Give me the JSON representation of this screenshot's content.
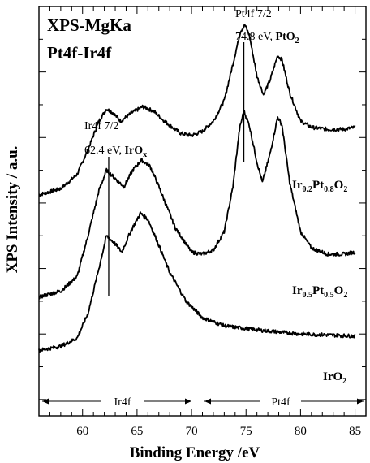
{
  "chart_data": {
    "type": "line",
    "title_lines": [
      "XPS-MgKa",
      "Pt4f-Ir4f"
    ],
    "xlabel": "Binding Energy /eV",
    "ylabel": "XPS Intensity / a.u.",
    "xlim": [
      56,
      86
    ],
    "ylim": [
      0,
      100
    ],
    "x_ticks": [
      60,
      65,
      70,
      75,
      80,
      85
    ],
    "y_ticks_visible_labels": false,
    "series": [
      {
        "name_parts": [
          [
            "Ir",
            ""
          ],
          [
            "0.2",
            "sub"
          ],
          [
            "Pt",
            ""
          ],
          [
            "0.8",
            "sub"
          ],
          [
            "O",
            ""
          ],
          [
            "2",
            "sub"
          ]
        ],
        "points": [
          [
            56,
            54
          ],
          [
            58,
            55.5
          ],
          [
            59.5,
            59
          ],
          [
            60.5,
            65
          ],
          [
            61.5,
            72
          ],
          [
            62.2,
            75
          ],
          [
            62.8,
            74
          ],
          [
            63.5,
            72
          ],
          [
            64.5,
            74
          ],
          [
            65.5,
            75.5
          ],
          [
            66.5,
            74.5
          ],
          [
            67.5,
            72
          ],
          [
            69,
            69
          ],
          [
            70,
            68.5
          ],
          [
            71,
            69.5
          ],
          [
            72,
            72
          ],
          [
            73,
            77
          ],
          [
            73.8,
            86
          ],
          [
            74.5,
            94
          ],
          [
            74.9,
            95.5
          ],
          [
            75.3,
            93
          ],
          [
            76,
            83
          ],
          [
            76.6,
            78.5
          ],
          [
            77.2,
            82
          ],
          [
            77.9,
            88
          ],
          [
            78.3,
            87
          ],
          [
            79,
            79
          ],
          [
            80,
            72
          ],
          [
            81,
            70.5
          ],
          [
            82.5,
            70
          ],
          [
            84,
            70
          ],
          [
            85,
            70.5
          ]
        ]
      },
      {
        "name_parts": [
          [
            "Ir",
            ""
          ],
          [
            "0.5",
            "sub"
          ],
          [
            "Pt",
            ""
          ],
          [
            "0.5",
            "sub"
          ],
          [
            "O",
            ""
          ],
          [
            "2",
            "sub"
          ]
        ],
        "points": [
          [
            56,
            29
          ],
          [
            58,
            30.5
          ],
          [
            59.5,
            34
          ],
          [
            60.5,
            44
          ],
          [
            61.5,
            55
          ],
          [
            62.2,
            60
          ],
          [
            63,
            58
          ],
          [
            63.8,
            56
          ],
          [
            64.6,
            60
          ],
          [
            65.4,
            62.5
          ],
          [
            66.2,
            61
          ],
          [
            67,
            56
          ],
          [
            68.5,
            46
          ],
          [
            70,
            40
          ],
          [
            71,
            39.5
          ],
          [
            72,
            40.5
          ],
          [
            73,
            45
          ],
          [
            73.8,
            56
          ],
          [
            74.4,
            70
          ],
          [
            74.8,
            74.5
          ],
          [
            75.3,
            71
          ],
          [
            76,
            62
          ],
          [
            76.5,
            57
          ],
          [
            77.2,
            64
          ],
          [
            77.9,
            73
          ],
          [
            78.3,
            71
          ],
          [
            79,
            57
          ],
          [
            80,
            45
          ],
          [
            81,
            41
          ],
          [
            82.5,
            39.5
          ],
          [
            84,
            39.5
          ],
          [
            85,
            40
          ]
        ]
      },
      {
        "name_parts": [
          [
            "IrO",
            ""
          ],
          [
            "2",
            "sub"
          ]
        ],
        "points": [
          [
            56,
            16
          ],
          [
            58,
            17
          ],
          [
            59.5,
            19
          ],
          [
            60.5,
            25
          ],
          [
            61.5,
            36
          ],
          [
            62.2,
            44
          ],
          [
            63,
            42
          ],
          [
            63.6,
            40
          ],
          [
            64.4,
            45
          ],
          [
            65.3,
            49.5
          ],
          [
            66,
            48
          ],
          [
            66.8,
            43
          ],
          [
            68,
            35
          ],
          [
            69.5,
            28
          ],
          [
            71,
            24
          ],
          [
            73,
            22
          ],
          [
            76,
            21
          ],
          [
            80,
            20
          ],
          [
            85,
            19.5
          ]
        ]
      }
    ],
    "annotations": {
      "ir_peak": {
        "name": "Ir4f 7/2",
        "value": "62.4 eV",
        "compound": "IrO",
        "compound_sub": "x",
        "x": 62.4
      },
      "pt_peak": {
        "name": "Pt4f 7/2",
        "value": "74.8 eV",
        "compound": "PtO",
        "compound_sub": "2",
        "x": 74.8
      }
    },
    "region_labels": [
      {
        "label": "Ir4f",
        "from": 56,
        "to": 70.8
      },
      {
        "label": "Pt4f",
        "from": 71,
        "to": 86
      }
    ],
    "colors": {
      "line": "#000000",
      "background": "#ffffff"
    }
  }
}
